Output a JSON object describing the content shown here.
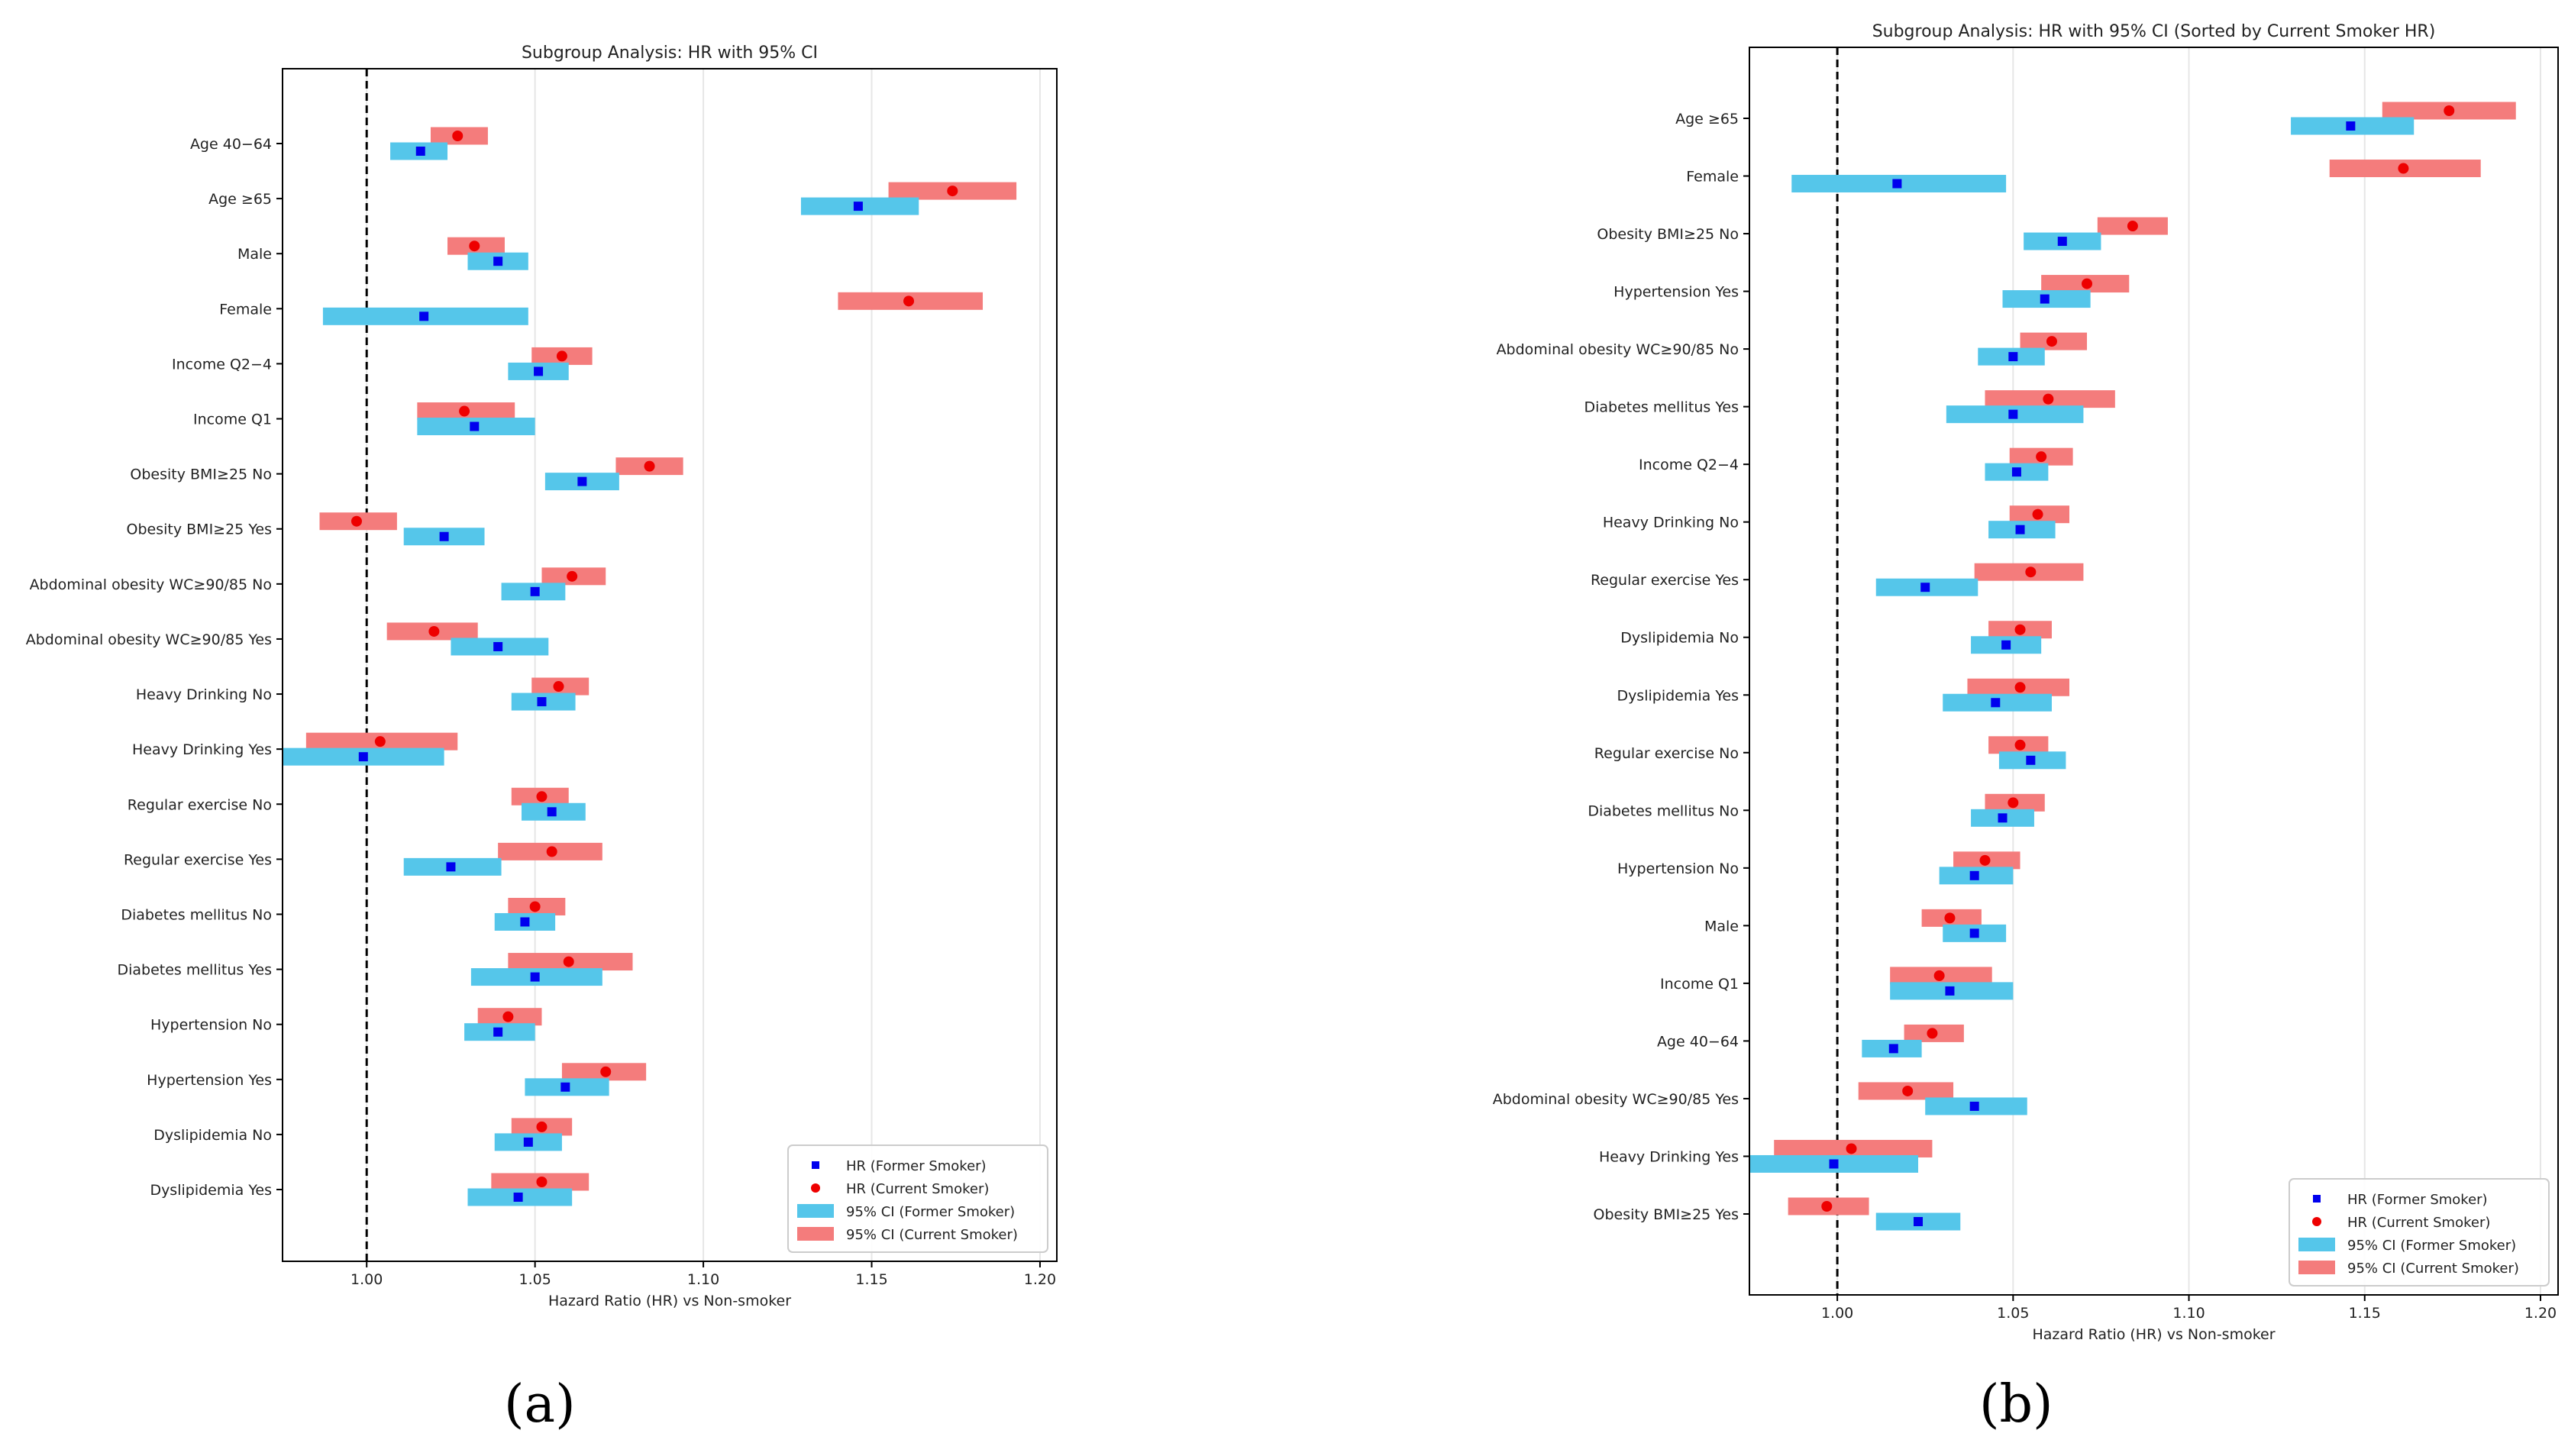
{
  "colors": {
    "former": "#55c6ea",
    "current": "#f47c7c",
    "former_point": "#0000ee",
    "current_point": "#ee0000"
  },
  "legend_labels": [
    "HR (Former Smoker)",
    "HR (Current Smoker)",
    "95% CI (Former Smoker)",
    "95% CI (Current Smoker)"
  ],
  "chart_data": [
    {
      "type": "forest",
      "panel_label": "(a)",
      "title": "Subgroup Analysis: HR with 95% CI",
      "xlabel": "Hazard Ratio (HR) vs Non-smoker",
      "xlim": [
        0.975,
        1.205
      ],
      "xticks": [
        "1.00",
        "1.05",
        "1.10",
        "1.15",
        "1.20"
      ],
      "reference_line": 1.0,
      "grid": "vertical",
      "legend_position": "lower-right",
      "categories": [
        "Age 40−64",
        "Age ≥65",
        "Male",
        "Female",
        "Income Q2−4",
        "Income Q1",
        "Obesity BMI≥25 No",
        "Obesity BMI≥25 Yes",
        "Abdominal obesity WC≥90/85 No",
        "Abdominal obesity WC≥90/85 Yes",
        "Heavy Drinking No",
        "Heavy Drinking Yes",
        "Regular exercise No",
        "Regular exercise Yes",
        "Diabetes mellitus No",
        "Diabetes mellitus Yes",
        "Hypertension No",
        "Hypertension Yes",
        "Dyslipidemia No",
        "Dyslipidemia Yes"
      ],
      "series": [
        {
          "name": "Former Smoker",
          "hr": [
            1.016,
            1.146,
            1.039,
            1.017,
            1.051,
            1.032,
            1.064,
            1.023,
            1.05,
            1.039,
            1.052,
            0.999,
            1.055,
            1.025,
            1.047,
            1.05,
            1.039,
            1.059,
            1.048,
            1.045
          ],
          "lower": [
            1.007,
            1.129,
            1.03,
            0.987,
            1.042,
            1.015,
            1.053,
            1.011,
            1.04,
            1.025,
            1.043,
            0.975,
            1.046,
            1.011,
            1.038,
            1.031,
            1.029,
            1.047,
            1.038,
            1.03
          ],
          "upper": [
            1.024,
            1.164,
            1.048,
            1.048,
            1.06,
            1.05,
            1.075,
            1.035,
            1.059,
            1.054,
            1.062,
            1.023,
            1.065,
            1.04,
            1.056,
            1.07,
            1.05,
            1.072,
            1.058,
            1.061
          ]
        },
        {
          "name": "Current Smoker",
          "hr": [
            1.027,
            1.174,
            1.032,
            1.161,
            1.058,
            1.029,
            1.084,
            0.997,
            1.061,
            1.02,
            1.057,
            1.004,
            1.052,
            1.055,
            1.05,
            1.06,
            1.042,
            1.071,
            1.052,
            1.052
          ],
          "lower": [
            1.019,
            1.155,
            1.024,
            1.14,
            1.049,
            1.015,
            1.074,
            0.986,
            1.052,
            1.006,
            1.049,
            0.982,
            1.043,
            1.039,
            1.042,
            1.042,
            1.033,
            1.058,
            1.043,
            1.037
          ],
          "upper": [
            1.036,
            1.193,
            1.041,
            1.183,
            1.067,
            1.044,
            1.094,
            1.009,
            1.071,
            1.033,
            1.066,
            1.027,
            1.06,
            1.07,
            1.059,
            1.079,
            1.052,
            1.083,
            1.061,
            1.066
          ]
        }
      ]
    },
    {
      "type": "forest",
      "panel_label": "(b)",
      "title": "Subgroup Analysis: HR with 95% CI (Sorted by Current Smoker HR)",
      "xlabel": "Hazard Ratio (HR) vs Non-smoker",
      "xlim": [
        0.975,
        1.205
      ],
      "xticks": [
        "1.00",
        "1.05",
        "1.10",
        "1.15",
        "1.20"
      ],
      "reference_line": 1.0,
      "grid": "vertical",
      "legend_position": "lower-right",
      "categories": [
        "Age ≥65",
        "Female",
        "Obesity BMI≥25 No",
        "Hypertension Yes",
        "Abdominal obesity WC≥90/85 No",
        "Diabetes mellitus Yes",
        "Income Q2−4",
        "Heavy Drinking No",
        "Regular exercise Yes",
        "Dyslipidemia No",
        "Dyslipidemia Yes",
        "Regular exercise No",
        "Diabetes mellitus No",
        "Hypertension No",
        "Male",
        "Income Q1",
        "Age 40−64",
        "Abdominal obesity WC≥90/85 Yes",
        "Heavy Drinking Yes",
        "Obesity BMI≥25 Yes"
      ],
      "series": [
        {
          "name": "Former Smoker",
          "hr": [
            1.146,
            1.017,
            1.064,
            1.059,
            1.05,
            1.05,
            1.051,
            1.052,
            1.025,
            1.048,
            1.045,
            1.055,
            1.047,
            1.039,
            1.039,
            1.032,
            1.016,
            1.039,
            0.999,
            1.023
          ],
          "lower": [
            1.129,
            0.987,
            1.053,
            1.047,
            1.04,
            1.031,
            1.042,
            1.043,
            1.011,
            1.038,
            1.03,
            1.046,
            1.038,
            1.029,
            1.03,
            1.015,
            1.007,
            1.025,
            0.975,
            1.011
          ],
          "upper": [
            1.164,
            1.048,
            1.075,
            1.072,
            1.059,
            1.07,
            1.06,
            1.062,
            1.04,
            1.058,
            1.061,
            1.065,
            1.056,
            1.05,
            1.048,
            1.05,
            1.024,
            1.054,
            1.023,
            1.035
          ]
        },
        {
          "name": "Current Smoker",
          "hr": [
            1.174,
            1.161,
            1.084,
            1.071,
            1.061,
            1.06,
            1.058,
            1.057,
            1.055,
            1.052,
            1.052,
            1.052,
            1.05,
            1.042,
            1.032,
            1.029,
            1.027,
            1.02,
            1.004,
            0.997
          ],
          "lower": [
            1.155,
            1.14,
            1.074,
            1.058,
            1.052,
            1.042,
            1.049,
            1.049,
            1.039,
            1.043,
            1.037,
            1.043,
            1.042,
            1.033,
            1.024,
            1.015,
            1.019,
            1.006,
            0.982,
            0.986
          ],
          "upper": [
            1.193,
            1.183,
            1.094,
            1.083,
            1.071,
            1.079,
            1.067,
            1.066,
            1.07,
            1.061,
            1.066,
            1.06,
            1.059,
            1.052,
            1.041,
            1.044,
            1.036,
            1.033,
            1.027,
            1.009
          ]
        }
      ]
    }
  ]
}
